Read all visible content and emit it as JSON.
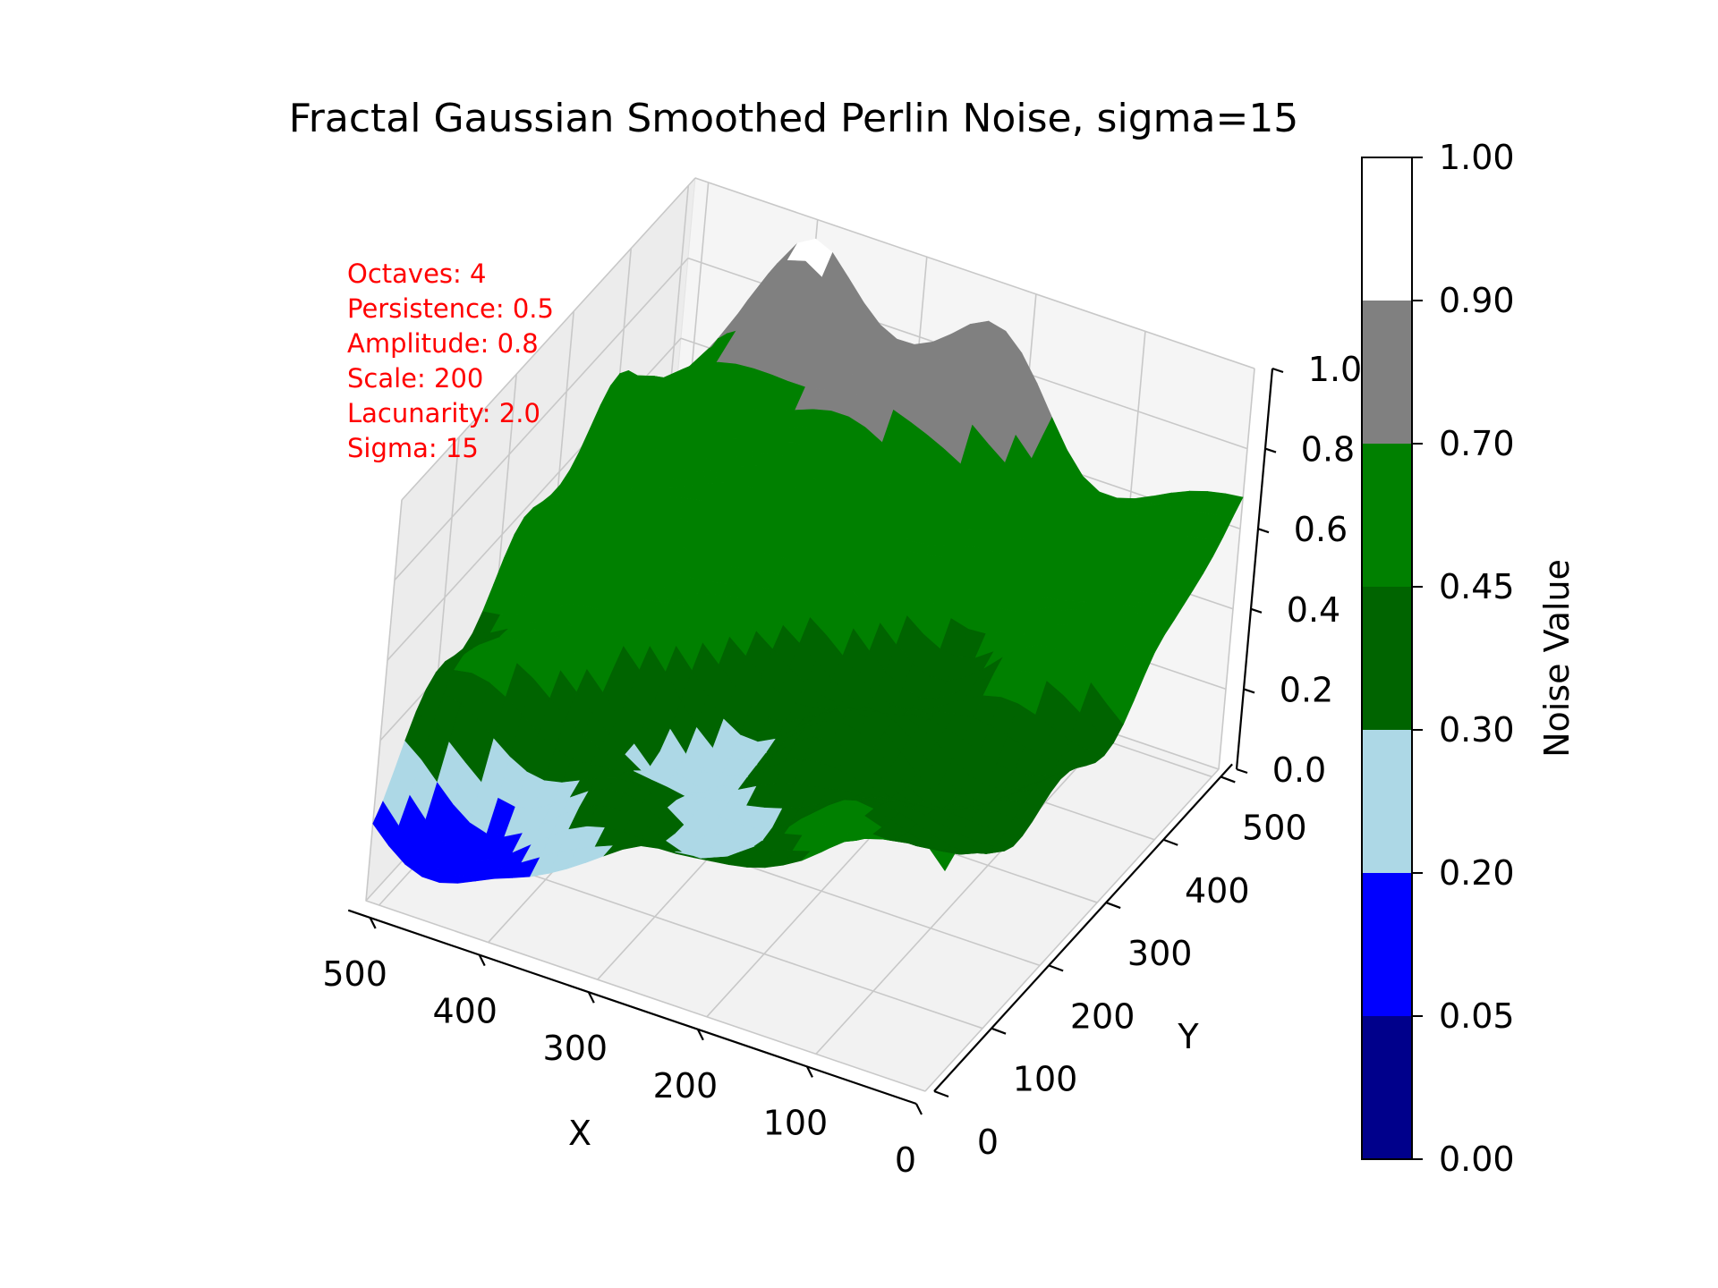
{
  "chart_data": {
    "type": "surface3d",
    "title": "Fractal Gaussian Smoothed Perlin Noise, sigma=15",
    "xlabel": "X",
    "ylabel": "Y",
    "zlabel": "",
    "x_ticks": [
      "0",
      "100",
      "200",
      "300",
      "400",
      "500"
    ],
    "y_ticks": [
      "0",
      "100",
      "200",
      "300",
      "400",
      "500"
    ],
    "z_ticks": [
      "0.0",
      "0.2",
      "0.4",
      "0.6",
      "0.8",
      "1.0"
    ],
    "xlim": [
      0,
      512
    ],
    "ylim": [
      0,
      512
    ],
    "zlim": [
      0,
      1
    ],
    "grid": true,
    "annotations": [
      "Octaves: 4",
      "Persistence: 0.5",
      "Amplitude: 0.8",
      "Scale: 200",
      "Lacunarity: 2.0",
      "Sigma: 15"
    ],
    "annotation_color": "#ff0000",
    "colorbar": {
      "label": "Noise Value",
      "tick_labels": [
        "0.00",
        "0.05",
        "0.20",
        "0.30",
        "0.45",
        "0.70",
        "0.90",
        "1.00"
      ],
      "boundaries": [
        0.0,
        0.05,
        0.2,
        0.3,
        0.45,
        0.7,
        0.9,
        1.0
      ],
      "colors": [
        "#00008b",
        "#0000ff",
        "#add8e6",
        "#006400",
        "#008000",
        "#808080",
        "#ffffff"
      ]
    },
    "surface_samples": {
      "x": [
        0,
        128,
        256,
        384,
        512
      ],
      "y": [
        0,
        128,
        256,
        384,
        512
      ],
      "z": [
        [
          0.55,
          0.45,
          0.4,
          0.5,
          0.7
        ],
        [
          0.5,
          0.4,
          0.35,
          0.55,
          0.6
        ],
        [
          0.35,
          0.25,
          0.4,
          0.55,
          0.85
        ],
        [
          0.15,
          0.4,
          0.5,
          0.6,
          0.9
        ],
        [
          0.2,
          0.45,
          0.55,
          0.65,
          0.5
        ]
      ]
    }
  }
}
